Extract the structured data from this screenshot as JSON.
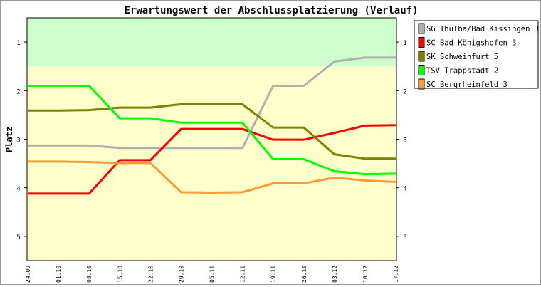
{
  "chart_data": {
    "type": "line",
    "title": "Erwartungswert der Abschlussplatzierung (Verlauf)",
    "ylabel": "Platz",
    "xlabel": "",
    "ylim": [
      0.5,
      5.5
    ],
    "y_inverted": true,
    "yticks": [
      1,
      2,
      3,
      4,
      5
    ],
    "bands": [
      {
        "from": 0.5,
        "to": 1.5,
        "color": "#ccffcc"
      },
      {
        "from": 1.5,
        "to": 5.5,
        "color": "#ffffcc"
      }
    ],
    "legend_position": "right",
    "categories": [
      "24.09",
      "01.10",
      "08.10",
      "15.10",
      "22.10",
      "29.10",
      "05.11",
      "12.11",
      "19.11",
      "26.11",
      "03.12",
      "10.12",
      "17.12"
    ],
    "series": [
      {
        "name": "SG Thulba/Bad Kissingen 3",
        "color": "#b0b0b0",
        "values": [
          3.13,
          3.13,
          3.13,
          3.18,
          3.18,
          3.18,
          3.18,
          3.18,
          1.9,
          1.9,
          1.4,
          1.32,
          1.32
        ]
      },
      {
        "name": "SC Bad Königshofen 3",
        "color": "#ff0000",
        "values": [
          4.12,
          4.12,
          4.12,
          3.43,
          3.43,
          2.79,
          2.79,
          2.79,
          3.01,
          3.01,
          2.87,
          2.72,
          2.71
        ]
      },
      {
        "name": "SK Schweinfurt 5",
        "color": "#808000",
        "values": [
          2.41,
          2.41,
          2.4,
          2.35,
          2.35,
          2.28,
          2.28,
          2.28,
          2.76,
          2.76,
          3.31,
          3.4,
          3.4
        ]
      },
      {
        "name": "TSV Trappstadt 2",
        "color": "#00ff00",
        "values": [
          1.9,
          1.9,
          1.9,
          2.57,
          2.57,
          2.66,
          2.66,
          2.66,
          3.41,
          3.41,
          3.66,
          3.72,
          3.71
        ]
      },
      {
        "name": "SC Bergrheinfeld 3",
        "color": "#ff9933",
        "values": [
          3.46,
          3.46,
          3.47,
          3.49,
          3.49,
          4.09,
          4.1,
          4.09,
          3.91,
          3.91,
          3.79,
          3.85,
          3.88
        ]
      }
    ]
  }
}
